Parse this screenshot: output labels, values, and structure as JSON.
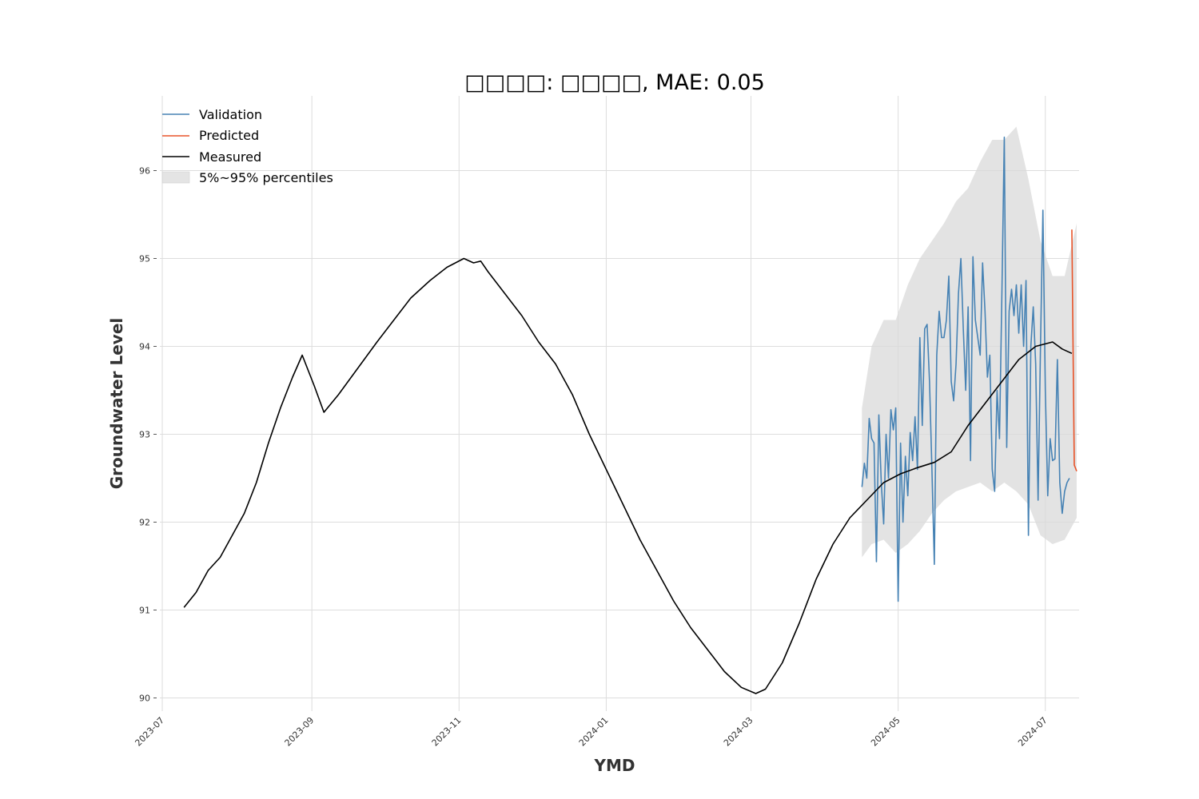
{
  "chart_data": {
    "type": "line",
    "title": "□□□□: □□□□, MAE: 0.05",
    "xlabel": "YMD",
    "ylabel": "Groundwater Level",
    "xlim": [
      "2023-06-30",
      "2024-07-15"
    ],
    "ylim": [
      89.85,
      96.85
    ],
    "x_ticks": [
      "2023-07",
      "2023-09",
      "2023-11",
      "2024-01",
      "2024-03",
      "2024-05",
      "2024-07"
    ],
    "y_ticks": [
      "90",
      "91",
      "92",
      "93",
      "94",
      "95",
      "96"
    ],
    "grid": true,
    "legend": {
      "placement": "top-left",
      "entries": [
        "Validation",
        "Predicted",
        "Measured",
        "5%~95% percentiles"
      ]
    },
    "colors": {
      "validation": "#4682b4",
      "predicted": "#e8542a",
      "measured": "#000000",
      "band": "#d9d9d9",
      "grid": "#dddddd"
    },
    "series": [
      {
        "name": "Measured",
        "points": [
          [
            "2023-07-10",
            91.03
          ],
          [
            "2023-07-15",
            91.2
          ],
          [
            "2023-07-20",
            91.45
          ],
          [
            "2023-07-25",
            91.6
          ],
          [
            "2023-07-30",
            91.85
          ],
          [
            "2023-08-04",
            92.1
          ],
          [
            "2023-08-09",
            92.45
          ],
          [
            "2023-08-14",
            92.9
          ],
          [
            "2023-08-19",
            93.3
          ],
          [
            "2023-08-24",
            93.65
          ],
          [
            "2023-08-28",
            93.9
          ],
          [
            "2023-09-02",
            93.55
          ],
          [
            "2023-09-06",
            93.25
          ],
          [
            "2023-09-12",
            93.45
          ],
          [
            "2023-09-20",
            93.75
          ],
          [
            "2023-09-28",
            94.05
          ],
          [
            "2023-10-05",
            94.3
          ],
          [
            "2023-10-12",
            94.55
          ],
          [
            "2023-10-20",
            94.75
          ],
          [
            "2023-10-27",
            94.9
          ],
          [
            "2023-11-03",
            95.0
          ],
          [
            "2023-11-07",
            94.95
          ],
          [
            "2023-11-10",
            94.97
          ],
          [
            "2023-11-13",
            94.85
          ],
          [
            "2023-11-20",
            94.6
          ],
          [
            "2023-11-27",
            94.35
          ],
          [
            "2023-12-04",
            94.05
          ],
          [
            "2023-12-11",
            93.8
          ],
          [
            "2023-12-18",
            93.45
          ],
          [
            "2023-12-25",
            93.0
          ],
          [
            "2024-01-01",
            92.6
          ],
          [
            "2024-01-08",
            92.2
          ],
          [
            "2024-01-15",
            91.8
          ],
          [
            "2024-01-22",
            91.45
          ],
          [
            "2024-01-29",
            91.1
          ],
          [
            "2024-02-05",
            90.8
          ],
          [
            "2024-02-12",
            90.55
          ],
          [
            "2024-02-19",
            90.3
          ],
          [
            "2024-02-26",
            90.12
          ],
          [
            "2024-03-03",
            90.05
          ],
          [
            "2024-03-07",
            90.1
          ],
          [
            "2024-03-14",
            90.4
          ],
          [
            "2024-03-21",
            90.85
          ],
          [
            "2024-03-28",
            91.35
          ],
          [
            "2024-04-04",
            91.75
          ],
          [
            "2024-04-11",
            92.05
          ],
          [
            "2024-04-18",
            92.25
          ],
          [
            "2024-04-25",
            92.45
          ],
          [
            "2024-05-02",
            92.55
          ],
          [
            "2024-05-09",
            92.62
          ],
          [
            "2024-05-16",
            92.68
          ],
          [
            "2024-05-23",
            92.8
          ],
          [
            "2024-05-30",
            93.1
          ],
          [
            "2024-06-06",
            93.35
          ],
          [
            "2024-06-13",
            93.6
          ],
          [
            "2024-06-20",
            93.85
          ],
          [
            "2024-06-27",
            94.0
          ],
          [
            "2024-07-04",
            94.05
          ],
          [
            "2024-07-08",
            93.97
          ],
          [
            "2024-07-12",
            93.92
          ]
        ]
      },
      {
        "name": "Validation",
        "points": [
          [
            "2024-04-16",
            92.4
          ],
          [
            "2024-04-17",
            92.67
          ],
          [
            "2024-04-18",
            92.5
          ],
          [
            "2024-04-19",
            93.18
          ],
          [
            "2024-04-20",
            92.95
          ],
          [
            "2024-04-21",
            92.9
          ],
          [
            "2024-04-22",
            91.55
          ],
          [
            "2024-04-23",
            93.22
          ],
          [
            "2024-04-24",
            92.45
          ],
          [
            "2024-04-25",
            91.98
          ],
          [
            "2024-04-26",
            93.0
          ],
          [
            "2024-04-27",
            92.5
          ],
          [
            "2024-04-28",
            93.28
          ],
          [
            "2024-04-29",
            93.05
          ],
          [
            "2024-04-30",
            93.3
          ],
          [
            "2024-05-01",
            91.1
          ],
          [
            "2024-05-02",
            92.9
          ],
          [
            "2024-05-03",
            92.0
          ],
          [
            "2024-05-04",
            92.75
          ],
          [
            "2024-05-05",
            92.3
          ],
          [
            "2024-05-06",
            93.02
          ],
          [
            "2024-05-07",
            92.7
          ],
          [
            "2024-05-08",
            93.2
          ],
          [
            "2024-05-09",
            92.6
          ],
          [
            "2024-05-10",
            94.1
          ],
          [
            "2024-05-11",
            93.1
          ],
          [
            "2024-05-12",
            94.2
          ],
          [
            "2024-05-13",
            94.25
          ],
          [
            "2024-05-14",
            93.6
          ],
          [
            "2024-05-15",
            92.6
          ],
          [
            "2024-05-16",
            91.52
          ],
          [
            "2024-05-17",
            93.9
          ],
          [
            "2024-05-18",
            94.4
          ],
          [
            "2024-05-19",
            94.1
          ],
          [
            "2024-05-20",
            94.1
          ],
          [
            "2024-05-21",
            94.3
          ],
          [
            "2024-05-22",
            94.8
          ],
          [
            "2024-05-23",
            93.6
          ],
          [
            "2024-05-24",
            93.38
          ],
          [
            "2024-05-25",
            93.8
          ],
          [
            "2024-05-26",
            94.6
          ],
          [
            "2024-05-27",
            95.0
          ],
          [
            "2024-05-28",
            94.2
          ],
          [
            "2024-05-29",
            93.5
          ],
          [
            "2024-05-30",
            94.45
          ],
          [
            "2024-05-31",
            92.7
          ],
          [
            "2024-06-01",
            95.02
          ],
          [
            "2024-06-02",
            94.3
          ],
          [
            "2024-06-03",
            94.1
          ],
          [
            "2024-06-04",
            93.9
          ],
          [
            "2024-06-05",
            94.95
          ],
          [
            "2024-06-06",
            94.4
          ],
          [
            "2024-06-07",
            93.65
          ],
          [
            "2024-06-08",
            93.9
          ],
          [
            "2024-06-09",
            92.6
          ],
          [
            "2024-06-10",
            92.35
          ],
          [
            "2024-06-11",
            93.5
          ],
          [
            "2024-06-12",
            92.95
          ],
          [
            "2024-06-13",
            94.6
          ],
          [
            "2024-06-14",
            96.38
          ],
          [
            "2024-06-15",
            92.85
          ],
          [
            "2024-06-16",
            94.4
          ],
          [
            "2024-06-17",
            94.65
          ],
          [
            "2024-06-18",
            94.35
          ],
          [
            "2024-06-19",
            94.7
          ],
          [
            "2024-06-20",
            94.15
          ],
          [
            "2024-06-21",
            94.7
          ],
          [
            "2024-06-22",
            94.0
          ],
          [
            "2024-06-23",
            94.75
          ],
          [
            "2024-06-24",
            91.85
          ],
          [
            "2024-06-25",
            94.0
          ],
          [
            "2024-06-26",
            94.45
          ],
          [
            "2024-06-27",
            93.8
          ],
          [
            "2024-06-28",
            92.25
          ],
          [
            "2024-06-29",
            94.0
          ],
          [
            "2024-06-30",
            95.55
          ],
          [
            "2024-07-01",
            93.5
          ],
          [
            "2024-07-02",
            92.3
          ],
          [
            "2024-07-03",
            92.95
          ],
          [
            "2024-07-04",
            92.7
          ],
          [
            "2024-07-05",
            92.72
          ],
          [
            "2024-07-06",
            93.85
          ],
          [
            "2024-07-07",
            92.45
          ],
          [
            "2024-07-08",
            92.1
          ],
          [
            "2024-07-09",
            92.35
          ],
          [
            "2024-07-10",
            92.45
          ],
          [
            "2024-07-11",
            92.5
          ]
        ]
      },
      {
        "name": "Predicted",
        "points": [
          [
            "2024-07-12",
            95.33
          ],
          [
            "2024-07-13",
            92.65
          ],
          [
            "2024-07-14",
            92.58
          ]
        ]
      }
    ],
    "band": {
      "name": "5%~95% percentiles",
      "x": [
        "2024-04-16",
        "2024-04-20",
        "2024-04-25",
        "2024-04-30",
        "2024-05-05",
        "2024-05-10",
        "2024-05-15",
        "2024-05-20",
        "2024-05-25",
        "2024-05-30",
        "2024-06-04",
        "2024-06-09",
        "2024-06-14",
        "2024-06-19",
        "2024-06-24",
        "2024-06-29",
        "2024-07-04",
        "2024-07-09",
        "2024-07-14"
      ],
      "lower": [
        91.6,
        91.75,
        91.8,
        91.65,
        91.75,
        91.9,
        92.1,
        92.25,
        92.35,
        92.4,
        92.45,
        92.35,
        92.45,
        92.35,
        92.2,
        91.85,
        91.75,
        91.8,
        92.05
      ],
      "upper": [
        93.3,
        94.0,
        94.3,
        94.3,
        94.7,
        95.0,
        95.2,
        95.4,
        95.65,
        95.8,
        96.1,
        96.35,
        96.35,
        96.5,
        95.9,
        95.2,
        94.8,
        94.8,
        95.4
      ]
    }
  }
}
